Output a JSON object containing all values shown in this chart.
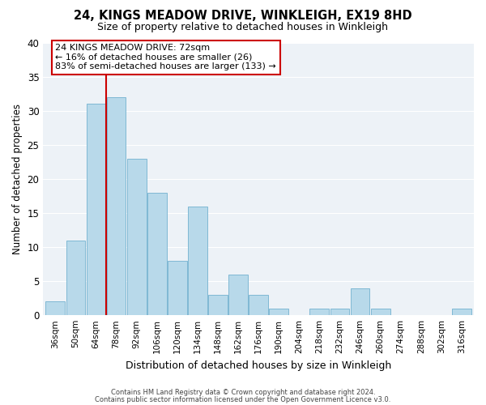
{
  "title": "24, KINGS MEADOW DRIVE, WINKLEIGH, EX19 8HD",
  "subtitle": "Size of property relative to detached houses in Winkleigh",
  "xlabel": "Distribution of detached houses by size in Winkleigh",
  "ylabel": "Number of detached properties",
  "bin_labels": [
    "36sqm",
    "50sqm",
    "64sqm",
    "78sqm",
    "92sqm",
    "106sqm",
    "120sqm",
    "134sqm",
    "148sqm",
    "162sqm",
    "176sqm",
    "190sqm",
    "204sqm",
    "218sqm",
    "232sqm",
    "246sqm",
    "260sqm",
    "274sqm",
    "288sqm",
    "302sqm",
    "316sqm"
  ],
  "bar_heights": [
    2,
    11,
    31,
    32,
    23,
    18,
    8,
    16,
    3,
    6,
    3,
    1,
    0,
    1,
    1,
    4,
    1,
    0,
    0,
    0,
    1
  ],
  "bar_color": "#b8d9ea",
  "bar_edge_color": "#7fb8d4",
  "red_line_x": 2.5,
  "annotation_text": "24 KINGS MEADOW DRIVE: 72sqm\n← 16% of detached houses are smaller (26)\n83% of semi-detached houses are larger (133) →",
  "annotation_box_color": "white",
  "annotation_box_edge_color": "#cc0000",
  "ylim": [
    0,
    40
  ],
  "yticks": [
    0,
    5,
    10,
    15,
    20,
    25,
    30,
    35,
    40
  ],
  "bg_color": "#edf2f7",
  "grid_color": "white",
  "footer1": "Contains HM Land Registry data © Crown copyright and database right 2024.",
  "footer2": "Contains public sector information licensed under the Open Government Licence v3.0."
}
